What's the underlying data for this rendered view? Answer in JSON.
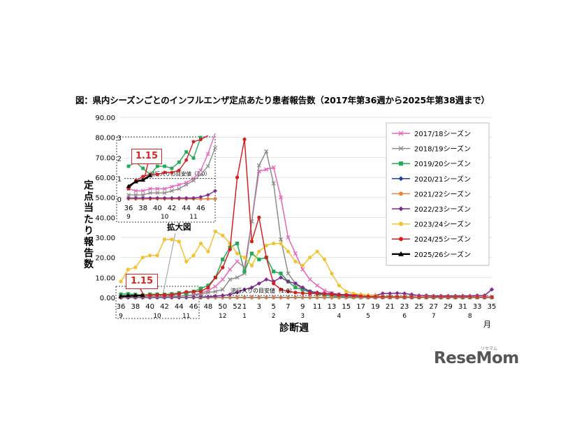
{
  "title": "図：県内シーズンごとのインフルエンザ定点あたり患者報告数（2017年第36週から2025年第38週まで）",
  "watermark": "ReseMom",
  "watermark_sub": "リセマム",
  "chart_data": {
    "type": "line",
    "ylabel": "定点当たり報告数",
    "xlabel": "診断週",
    "month_unit": "月",
    "ylim": [
      0,
      90
    ],
    "y_ticks": [
      "0.00",
      "10.00",
      "20.00",
      "30.00",
      "40.00",
      "50.00",
      "60.00",
      "70.00",
      "80.00",
      "90.00"
    ],
    "x_weeks": [
      36,
      37,
      38,
      39,
      40,
      41,
      42,
      43,
      44,
      45,
      46,
      47,
      48,
      49,
      50,
      51,
      52,
      1,
      2,
      3,
      4,
      5,
      6,
      7,
      8,
      9,
      10,
      11,
      12,
      13,
      14,
      15,
      16,
      17,
      18,
      19,
      20,
      21,
      22,
      23,
      24,
      25,
      26,
      27,
      28,
      29,
      30,
      31,
      32,
      33,
      34,
      35
    ],
    "x_tick_labels": [
      "36",
      "38",
      "40",
      "42",
      "44",
      "46",
      "48",
      "50",
      "52",
      "1",
      "3",
      "5",
      "7",
      "9",
      "11",
      "13",
      "15",
      "17",
      "19",
      "21",
      "23",
      "25",
      "27",
      "29",
      "31",
      "33",
      "35"
    ],
    "month_labels": [
      {
        "week": 36,
        "label": "9"
      },
      {
        "week": 41,
        "label": "10"
      },
      {
        "week": 45,
        "label": "11"
      },
      {
        "week": 50,
        "label": "12"
      },
      {
        "week": 1,
        "label": "1"
      },
      {
        "week": 5,
        "label": "2"
      },
      {
        "week": 9,
        "label": "3"
      },
      {
        "week": 14,
        "label": "4"
      },
      {
        "week": 18,
        "label": "5"
      },
      {
        "week": 23,
        "label": "6"
      },
      {
        "week": 27,
        "label": "7"
      },
      {
        "week": 32,
        "label": "8"
      }
    ],
    "threshold": {
      "value": 1.0,
      "label": "流行入りの目安値（1.0）"
    },
    "callout": "1.15",
    "inset": {
      "caption": "拡大図",
      "ylim": [
        0,
        3
      ],
      "y_ticks": [
        "0",
        "1",
        "2",
        "3"
      ],
      "x_tick_labels": [
        "36",
        "38",
        "40",
        "42",
        "44",
        "46"
      ],
      "month_labels": [
        {
          "week": 36,
          "label": "9"
        },
        {
          "week": 41,
          "label": "10"
        },
        {
          "week": 45,
          "label": "11"
        }
      ]
    },
    "series": [
      {
        "name": "2017/18シーズン",
        "color": "#e665b8",
        "marker": "x",
        "values": [
          0.5,
          0.4,
          0.4,
          0.5,
          0.5,
          0.5,
          0.6,
          0.7,
          0.8,
          1.0,
          1.4,
          2.2,
          3.5,
          5.5,
          9,
          14,
          18,
          15,
          38,
          63,
          64,
          65,
          50,
          30,
          22,
          14,
          9,
          6,
          3.5,
          2.2,
          1.5,
          1,
          0.8,
          0.6,
          0.5,
          0.4,
          0.3,
          0.3,
          0.3,
          0.2,
          0.2,
          0.2,
          0.2,
          0.2,
          0.2,
          0.2,
          0.2,
          0.2,
          0.2,
          0.2,
          0.2,
          0.2
        ]
      },
      {
        "name": "2018/19シーズン",
        "color": "#8c8c8c",
        "marker": "x",
        "values": [
          0.2,
          0.2,
          0.2,
          0.3,
          0.3,
          0.3,
          0.4,
          0.5,
          0.7,
          0.9,
          1.2,
          1.6,
          2.5,
          3,
          4,
          9,
          10,
          12,
          38,
          66,
          73,
          57,
          29,
          12,
          7,
          4,
          2.5,
          1.8,
          1.2,
          0.8,
          0.6,
          0.4,
          0.3,
          0.3,
          0.2,
          0.2,
          0.2,
          0.2,
          0.2,
          0.2,
          0.2,
          0.2,
          0.2,
          0.2,
          0.2,
          0.2,
          0.2,
          0.2,
          0.2,
          0.2,
          0.2,
          0.2
        ]
      },
      {
        "name": "2019/20シーズン",
        "color": "#22aa55",
        "marker": "square",
        "values": [
          1.6,
          1.8,
          1.5,
          1.2,
          1.6,
          1.6,
          1.5,
          1.8,
          2.3,
          2.0,
          3.0,
          4.5,
          6,
          10,
          19,
          25,
          27,
          13,
          22,
          19,
          20,
          13,
          12,
          8,
          5,
          4,
          3,
          2,
          1.2,
          0.8,
          0.5,
          0.3,
          0.2,
          0.1,
          0.1,
          0.1,
          0.1,
          0.1,
          0.1,
          0.1,
          0.1,
          0.1,
          0.1,
          0.1,
          0.1,
          0.1,
          0.1,
          0.1,
          0.1,
          0.1,
          0.1,
          0.1
        ]
      },
      {
        "name": "2020/21シーズン",
        "color": "#1f3f9e",
        "marker": "diamond",
        "values": [
          0.01,
          0.01,
          0.01,
          0.01,
          0.01,
          0.01,
          0.01,
          0.01,
          0.01,
          0.01,
          0.01,
          0.01,
          0.01,
          0.01,
          0.01,
          0.01,
          0.01,
          0.01,
          0.01,
          0.01,
          0.01,
          0.01,
          0.01,
          0.01,
          0.01,
          0.01,
          0.01,
          0.01,
          0.01,
          0.01,
          0.01,
          0.01,
          0.01,
          0.01,
          0.01,
          0.01,
          0.01,
          0.01,
          0.01,
          0.01,
          0.01,
          0.01,
          0.01,
          0.01,
          0.01,
          0.01,
          0.01,
          0.01,
          0.01,
          0.01,
          0.01,
          0.01
        ]
      },
      {
        "name": "2021/22シーズン",
        "color": "#e8823a",
        "marker": "circle",
        "values": [
          0.01,
          0.01,
          0.01,
          0.01,
          0.01,
          0.01,
          0.01,
          0.01,
          0.01,
          0.01,
          0.01,
          0.01,
          0.01,
          0.01,
          0.01,
          0.01,
          0.01,
          0.01,
          0.01,
          0.01,
          0.01,
          0.01,
          0.01,
          0.01,
          0.01,
          0.01,
          0.01,
          0.01,
          0.01,
          0.01,
          0.01,
          0.01,
          0.01,
          0.01,
          0.01,
          0.01,
          0.01,
          0.01,
          0.01,
          0.01,
          0.01,
          0.01,
          0.01,
          0.01,
          0.01,
          0.01,
          0.01,
          0.01,
          0.01,
          0.01,
          0.01,
          0.01
        ]
      },
      {
        "name": "2022/23シーズン",
        "color": "#7b2c8e",
        "marker": "diamond",
        "values": [
          0.05,
          0.05,
          0.05,
          0.05,
          0.05,
          0.05,
          0.05,
          0.05,
          0.05,
          0.05,
          0.1,
          0.2,
          0.4,
          0.7,
          1,
          1.5,
          2.5,
          4,
          5,
          7,
          9,
          8,
          10,
          8,
          7,
          5,
          3,
          2.5,
          2,
          2,
          1.5,
          1.5,
          1.3,
          1.5,
          1.2,
          1,
          2,
          2,
          2.2,
          2,
          1.5,
          1,
          1,
          0.8,
          0.8,
          0.8,
          0.8,
          0.8,
          0.8,
          1,
          1,
          4
        ]
      },
      {
        "name": "2023/24シーズン",
        "color": "#f2c230",
        "marker": "circle",
        "values": [
          8,
          14,
          15,
          20,
          21,
          21,
          29,
          29,
          28,
          18,
          21,
          27,
          23,
          33,
          31,
          27,
          22,
          20,
          16,
          23,
          26,
          27,
          27,
          23,
          18,
          16,
          20,
          23,
          19,
          12,
          6,
          3,
          2,
          1.5,
          1.2,
          0.8,
          0.6,
          0.5,
          0.5,
          0.4,
          0.3,
          0.3,
          0.3,
          0.3,
          0.3,
          0.3,
          0.3,
          0.3,
          0.3,
          0.3,
          0.3,
          0.3
        ]
      },
      {
        "name": "2024/25シーズン",
        "color": "#d42020",
        "marker": "circle",
        "values": [
          0.5,
          0.9,
          1.1,
          1.2,
          1.2,
          1.3,
          1.3,
          1.4,
          1.9,
          2.8,
          2.9,
          3.1,
          5,
          10,
          15,
          24,
          60,
          79,
          28,
          40,
          20,
          7,
          4,
          3,
          2.5,
          2.2,
          2,
          2,
          1.8,
          1.5,
          1.2,
          1,
          0.8,
          0.6,
          0.5,
          0.4,
          0.3,
          0.3,
          0.3,
          0.2,
          0.2,
          0.2,
          0.2,
          0.2,
          0.2,
          0.2,
          0.2,
          0.2,
          0.2,
          0.2,
          0.2,
          0.2
        ]
      },
      {
        "name": "2025/26シーズン",
        "color": "#000000",
        "marker": "triangle",
        "values": [
          0.62,
          0.85,
          0.93,
          1.15
        ]
      }
    ]
  }
}
